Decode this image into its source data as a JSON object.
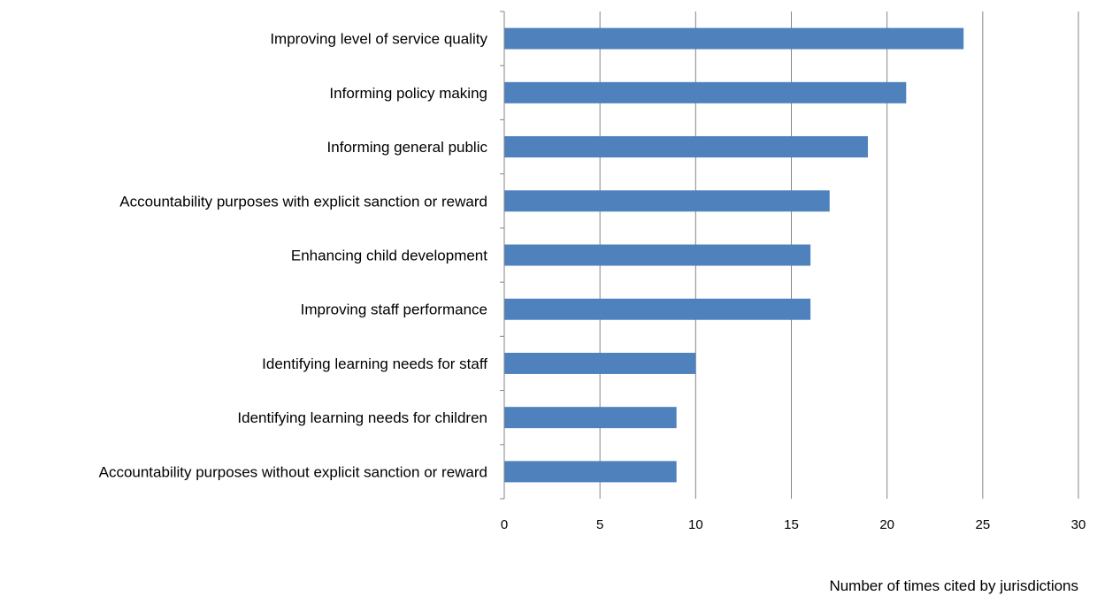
{
  "chart_data": {
    "type": "bar",
    "orientation": "horizontal",
    "categories": [
      "Improving level of service quality",
      "Informing policy making",
      "Informing general public",
      "Accountability purposes with explicit sanction or reward",
      "Enhancing child development",
      "Improving staff performance",
      "Identifying learning needs for staff",
      "Identifying learning needs for children",
      "Accountability purposes without explicit sanction or reward"
    ],
    "values": [
      24,
      21,
      19,
      17,
      16,
      16,
      10,
      9,
      9
    ],
    "xlabel": "Number of times cited by jurisdictions",
    "xlim": [
      0,
      30
    ],
    "xticks": [
      0,
      5,
      10,
      15,
      20,
      25,
      30
    ],
    "grid": "vertical",
    "legend": "none",
    "bar_color": "#4F81BD",
    "grid_color": "#868686"
  }
}
